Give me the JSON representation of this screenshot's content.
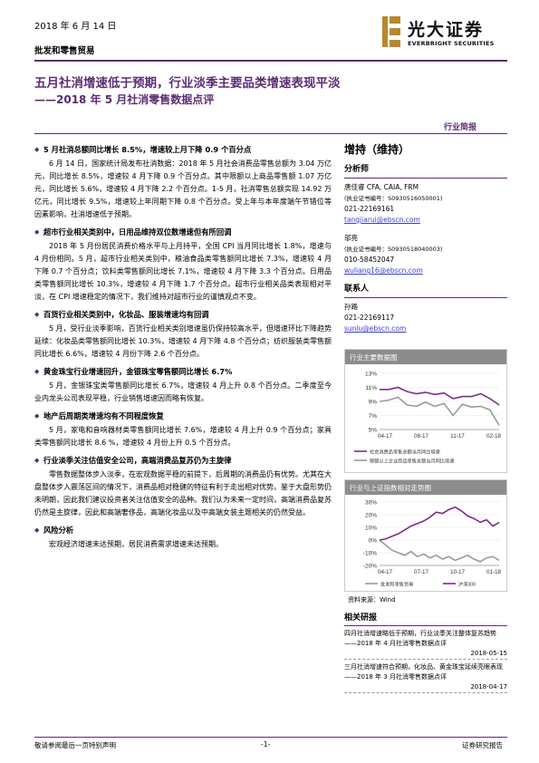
{
  "header": {
    "date": "2018 年 6 月 14 日",
    "sector": "批发和零售贸易",
    "logo_cn": "光大证券",
    "logo_en": "EVERBRIGHT SECURITIES",
    "brand_color": "#5c2d73"
  },
  "title": {
    "main": "五月社消增速低于预期，行业淡季主要品类增速表现平淡",
    "sub": "——2018 年 5 月社消零售数据点评",
    "report_type": "行业简报"
  },
  "sections": [
    {
      "heading": "5 月社消总额同比增长 8.5%，增速较上月下降 0.9 个百分点",
      "paragraphs": [
        "6 月 14 日，国家统计局发布社消数据：2018 年 5 月社会消费品零售总额为 3.04 万亿元，同比增长 8.5%，增速较 4 月下降 0.9 个百分点。其中限额以上商品零售额 1.07 万亿元，同比增长 5.6%，增速较 4 月下降 2.2 个百分点。1-5 月，社消零售总额实现 14.92 万亿元，同比增长 9.5%，增速较上年同期下降 0.8 个百分点。受上年与本年度端午节错位等因素影响，社消增速低于预期。"
      ]
    },
    {
      "heading": "超市行业相关类别中，日用品维持双位数增速但有所回调",
      "paragraphs": [
        "2018 年 5 月份居民消费价格水平与上月持平，全国 CPI 当月同比增长 1.8%，增速与 4 月份相同。5 月，超市行业相关类别中，粮油食品类零售额同比增长 7.3%，增速较 4 月下降 0.7 个百分点；饮料类零售额同比增长 7.1%，增速较 4 月下降 3.3 个百分点。日用品类零售额同比增长 10.3%，增速较 4 月下降 1.7 个百分点。超市行业相关品类表现相对平淡，在 CPI 增速稳定的情况下，我们维持对超市行业的谨慎观点不变。"
      ]
    },
    {
      "heading": "百货行业相关类别中，化妆品、服装增速均有回调",
      "paragraphs": [
        "5 月，受行业淡季影响，百货行业相关类别增速虽仍保持较高水平，但增速环比下降趋势延续：化妆品类零售额同比增长 10.3%，增速较 4 月下降 4.8 个百分点；纺织服装类零售额同比增长 6.6%，增速较 4 月份下降 2.6 个百分点。"
      ]
    },
    {
      "heading": "黄金珠宝行业增速回升，金银珠宝零售额同比增长 6.7%",
      "paragraphs": [
        "5 月，金银珠宝类零售额同比增长 6.7%，增速较 4 月上升 0.8 个百分点。二季度至今业内龙头公司表现平稳，行业销售增速因而略有恢复。"
      ]
    },
    {
      "heading": "地产后周期类增速均有不同程度恢复",
      "paragraphs": [
        "5 月，家电和音响器材类零售额同比增长 7.6%，增速较 4 月上升 0.9 个百分点；家具类零售额同比增长 8.6 %，增速较 4 月份上升 0.5 个百分点。"
      ]
    },
    {
      "heading": "行业淡季关注估值安全公司，高端消费品复苏仍为主旋律",
      "paragraphs": [
        "零售数据整体步入淡季，在宏观数据平稳的前提下，后周期的消费品仍有优势。尤其在大盘整体步入震荡区间的情况下，消费品相对稳健的特征有利于走出相对优势。鉴于大盘形势仍未明朗，因此我们建议投资者关注估值安全的品种。我们认为未来一定时间，高端消费品复苏仍然是主旋律，因此和高端奢侈品，高端化妆品以及中高端女装主题相关的仍然受益。"
      ]
    },
    {
      "heading": "风险分析",
      "paragraphs": [
        "宏观经济增速未达预期，居民消费需求增速未达预期。"
      ]
    }
  ],
  "sidebar": {
    "rating": "增持（维持）",
    "analyst_heading": "分析师",
    "analysts": [
      {
        "name_line": "唐佳睿 CFA, CAIA, FRM",
        "cert": "(执业证书编号：S0930516050001)",
        "phone": "021-22169161",
        "email": "tangjiarui@ebscn.com"
      },
      {
        "name_line": "邬亮",
        "cert": "(执业证书编号：S0930518040003)",
        "phone": "010-58452047",
        "email": "wuliang16@ebscn.com"
      }
    ],
    "contact_heading": "联系人",
    "contact": {
      "name": "孙路",
      "phone": "021-22169117",
      "email": "sunlu@ebscn.com"
    }
  },
  "chart_data": [
    {
      "type": "line",
      "title": "行业主要数据图",
      "x": [
        "04-17",
        "05-17",
        "06-17",
        "07-17",
        "08-17",
        "09-17",
        "10-17",
        "11-17",
        "12-17",
        "01-18",
        "02-18",
        "03-18",
        "04-18",
        "05-18"
      ],
      "xticks": [
        "04-17",
        "08-17",
        "11-17",
        "02-18"
      ],
      "ylim": [
        5,
        13
      ],
      "yticks": [
        "13%",
        "11%",
        "9%",
        "7%",
        "5%"
      ],
      "series": [
        {
          "name": "社会消费品零售总额当月同比增速",
          "color": "#7a2e86",
          "values": [
            10.7,
            10.7,
            11.0,
            10.4,
            10.1,
            10.3,
            10.0,
            10.2,
            9.4,
            9.7,
            9.7,
            10.1,
            9.4,
            8.5
          ]
        },
        {
          "name": "限额以上企业商品零售总额当月同比增速",
          "color": "#9a9a9a",
          "values": [
            9.0,
            9.2,
            9.6,
            8.5,
            8.3,
            8.9,
            8.3,
            8.7,
            7.0,
            8.6,
            8.2,
            8.3,
            7.8,
            5.6
          ]
        }
      ]
    },
    {
      "type": "line",
      "title": "行业与上证指数相对走势图",
      "xticks": [
        "04-17",
        "07-17",
        "10-17",
        "01-18"
      ],
      "ylim": [
        -20,
        30
      ],
      "yticks": [
        "30%",
        "20%",
        "10%",
        "0%",
        "-10%",
        "-20%"
      ],
      "series": [
        {
          "name": "批发和零售贸易",
          "color": "#9a9a9a",
          "values": [
            0,
            -4,
            -8,
            -10,
            -12,
            -9,
            -13,
            -11,
            -14,
            -12,
            -15,
            -13,
            -16,
            -14,
            -12,
            -15,
            -17,
            -14,
            -13,
            -16
          ]
        },
        {
          "name": "沪深300",
          "color": "#7a2e86",
          "values": [
            0,
            1,
            3,
            5,
            8,
            11,
            13,
            15,
            18,
            22,
            21,
            24,
            26,
            23,
            19,
            17,
            14,
            16,
            11,
            14
          ]
        }
      ]
    }
  ],
  "source_note": "资料来源：Wind",
  "related": {
    "heading": "相关研报",
    "items": [
      {
        "text": "四月社消增速略低于预期，行业淡季关注整体复苏趋势——2018 年 4 月社消零售数据点评",
        "date": "2018-05-15"
      },
      {
        "text": "三月社消增速符合预期，化妆品、黄金珠宝延续亮眼表现——2018 年 3 月社消零售数据点评",
        "date": "2018-04-17"
      }
    ]
  },
  "footer": {
    "left": "敬请参阅最后一页特别声明",
    "center": "-1-",
    "right": "证券研究报告"
  }
}
